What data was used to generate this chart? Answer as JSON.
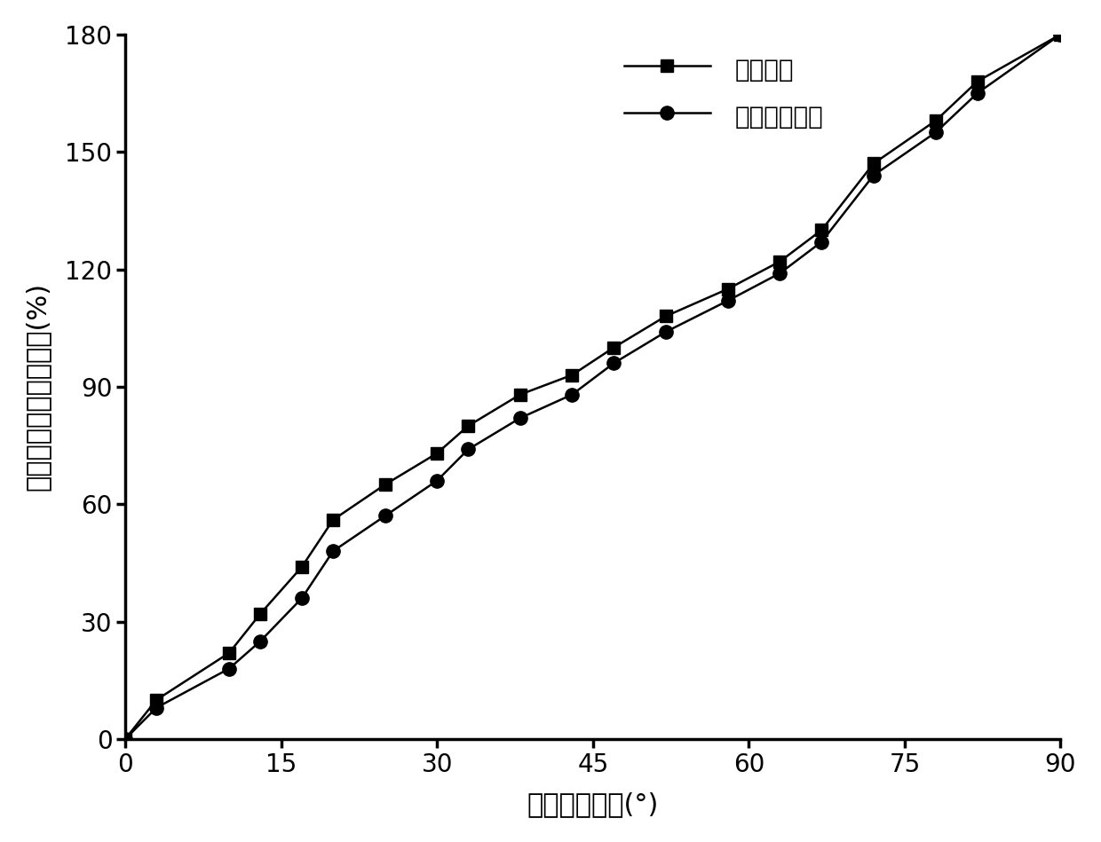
{
  "sim_x": [
    0,
    3,
    10,
    13,
    17,
    20,
    25,
    30,
    33,
    38,
    43,
    47,
    52,
    58,
    63,
    67,
    72,
    78,
    82,
    90
  ],
  "sim_y": [
    0,
    10,
    22,
    32,
    44,
    56,
    65,
    73,
    80,
    88,
    93,
    100,
    108,
    115,
    122,
    130,
    147,
    158,
    168,
    180
  ],
  "theory_x": [
    0,
    3,
    10,
    13,
    17,
    20,
    25,
    30,
    33,
    38,
    43,
    47,
    52,
    58,
    63,
    67,
    72,
    78,
    82,
    90
  ],
  "theory_y": [
    0,
    8,
    18,
    25,
    36,
    48,
    57,
    66,
    74,
    82,
    88,
    96,
    104,
    112,
    119,
    127,
    144,
    155,
    165,
    180
  ],
  "xlabel": "纳米砖方向角(°)",
  "ylabel": "反向偏振光相位改变量(%)",
  "legend_sim": "仿真结果",
  "legend_theory": "理论计算结果",
  "xlim": [
    0,
    90
  ],
  "ylim": [
    0,
    180
  ],
  "xticks": [
    0,
    15,
    30,
    45,
    60,
    75,
    90
  ],
  "yticks": [
    0,
    30,
    60,
    90,
    120,
    150,
    180
  ],
  "line_color": "#000000",
  "marker_size_sq": 10,
  "marker_size_circ": 11,
  "linewidth": 1.8,
  "background_color": "#ffffff",
  "tick_fontsize": 20,
  "label_fontsize": 22,
  "legend_fontsize": 20
}
